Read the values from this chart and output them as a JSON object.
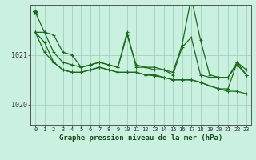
{
  "title": "Graphe pression niveau de la mer (hPa)",
  "bg_color": "#caf0e0",
  "line_color": "#1a6b1a",
  "grid_color": "#99ccbb",
  "x_ticks": [
    0,
    1,
    2,
    3,
    4,
    5,
    6,
    7,
    8,
    9,
    10,
    11,
    12,
    13,
    14,
    15,
    16,
    17,
    18,
    19,
    20,
    21,
    22,
    23
  ],
  "ylim": [
    1019.6,
    1022.0
  ],
  "yticks": [
    1020,
    1021
  ],
  "series": [
    [
      1021.85,
      1021.45,
      1021.4,
      1021.05,
      1021.0,
      1020.75,
      1020.8,
      1020.85,
      1020.8,
      1020.75,
      1021.4,
      1020.8,
      1020.75,
      1020.75,
      1020.7,
      1020.65,
      1021.2,
      1022.15,
      1021.3,
      1020.6,
      1020.55,
      1020.55,
      1020.85,
      1020.7
    ],
    [
      1021.45,
      1021.45,
      1021.05,
      1020.85,
      1020.8,
      1020.75,
      1020.8,
      1020.85,
      1020.8,
      1020.75,
      1021.45,
      1020.75,
      1020.75,
      1020.7,
      1020.7,
      1020.6,
      1021.15,
      1021.35,
      1020.6,
      1020.55,
      1020.55,
      1020.55,
      1020.8,
      1020.6
    ],
    [
      1021.45,
      1021.05,
      1020.85,
      1020.7,
      1020.65,
      1020.65,
      1020.7,
      1020.75,
      1020.7,
      1020.65,
      1020.65,
      1020.65,
      1020.6,
      1020.6,
      1020.55,
      1020.5,
      1020.5,
      1020.5,
      1020.45,
      1020.38,
      1020.32,
      1020.27,
      1020.27,
      1020.22
    ],
    [
      1021.45,
      1021.25,
      1020.85,
      1020.7,
      1020.65,
      1020.65,
      1020.7,
      1020.75,
      1020.7,
      1020.65,
      1020.65,
      1020.65,
      1020.6,
      1020.58,
      1020.55,
      1020.5,
      1020.5,
      1020.5,
      1020.45,
      1020.38,
      1020.32,
      1020.32,
      1020.85,
      1020.6
    ]
  ]
}
